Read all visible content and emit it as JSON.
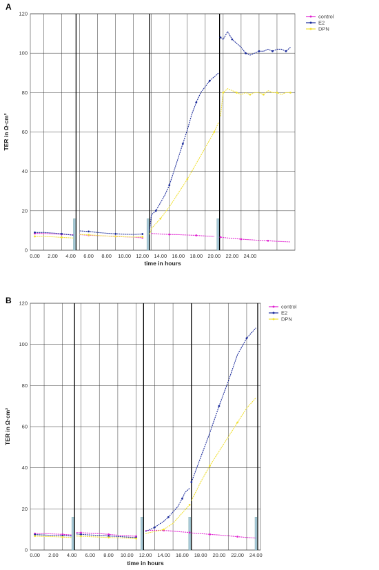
{
  "chart_data": [
    {
      "panel_label": "A",
      "type": "line",
      "xlabel": "time in hours",
      "ylabel": "TER in Ω·cm²",
      "x_tick_labels": [
        "0.00",
        "2.00",
        "4.00",
        "6.00",
        "8.00",
        "10.00",
        "12.00",
        "14.00",
        "16.00",
        "18.00",
        "20.00",
        "22.00",
        "24.00"
      ],
      "y_tick_labels": [
        "0",
        "20",
        "40",
        "60",
        "80",
        "100",
        "120"
      ],
      "ylim": [
        0,
        120
      ],
      "xlim": [
        -0.5,
        29
      ],
      "grid": true,
      "legend_position": "top-right",
      "series": [
        {
          "name": "control",
          "color": "#e020d0",
          "x": [
            0,
            1,
            2,
            3,
            4.3,
            5,
            6,
            7,
            8,
            9,
            10,
            11,
            12,
            13,
            14,
            15,
            16,
            17,
            18,
            19,
            20,
            20.7,
            21.5,
            22,
            23,
            24,
            25,
            26,
            27,
            28.5
          ],
          "y": [
            8.5,
            8.5,
            8.3,
            8.1,
            7.8,
            7.9,
            7.6,
            7.4,
            7.2,
            7.0,
            6.8,
            6.6,
            6.3,
            8.5,
            8.2,
            8.0,
            7.9,
            7.7,
            7.5,
            7.2,
            7.0,
            6.6,
            6.2,
            6.0,
            5.6,
            5.3,
            5.0,
            4.8,
            4.5,
            4.2
          ]
        },
        {
          "name": "E2",
          "color": "#1a2a9a",
          "x": [
            0,
            1,
            2,
            3,
            4.3,
            5,
            6,
            7,
            8,
            9,
            10,
            11,
            12,
            12.8,
            13,
            13.5,
            14,
            14.5,
            15,
            15.5,
            16,
            16.5,
            17,
            17.5,
            18,
            18.5,
            19,
            19.5,
            20,
            20.5,
            20.7,
            21,
            21.5,
            22,
            22.5,
            23,
            23.5,
            24,
            24.5,
            25,
            25.5,
            26,
            26.5,
            27,
            27.5,
            28,
            28.5
          ],
          "y": [
            9,
            9,
            8.7,
            8.3,
            7.6,
            9.8,
            9.5,
            9.0,
            8.6,
            8.3,
            8.1,
            8.0,
            8.2,
            10.0,
            18,
            20,
            24,
            28,
            33,
            40,
            47,
            54,
            61,
            69,
            75,
            80,
            83,
            86,
            88,
            90,
            108,
            107,
            111,
            107,
            105,
            103,
            100,
            99,
            100,
            101,
            101,
            102,
            101,
            102,
            102,
            101,
            103
          ]
        },
        {
          "name": "DPN",
          "color": "#f0e030",
          "x": [
            0,
            1,
            2,
            3,
            4.3,
            5,
            6,
            7,
            8,
            9,
            10,
            11,
            12,
            12.8,
            13,
            14,
            15,
            16,
            17,
            18,
            19,
            20,
            20.5,
            20.7,
            21,
            21.5,
            22,
            22.5,
            23,
            23.5,
            24,
            24.5,
            25,
            25.5,
            26,
            26.5,
            27,
            27.5,
            28,
            28.5
          ],
          "y": [
            7,
            7,
            6.8,
            6.5,
            6.2,
            8.0,
            7.8,
            7.5,
            7.2,
            7.0,
            6.8,
            6.7,
            6.8,
            8.0,
            11,
            16,
            22,
            29,
            36,
            44,
            52,
            60,
            65,
            68,
            80,
            82,
            81,
            80,
            79,
            80,
            79,
            80,
            80,
            79,
            81,
            80,
            80,
            79,
            80,
            80
          ]
        }
      ]
    },
    {
      "panel_label": "B",
      "type": "line",
      "xlabel": "time in hours",
      "ylabel": "TER in Ω·cm²",
      "x_tick_labels": [
        "0.00",
        "2.00",
        "4.00",
        "6.00",
        "8.00",
        "10.00",
        "12.00",
        "14.00",
        "16.00",
        "18.00",
        "20.00",
        "22.00",
        "24.00"
      ],
      "y_tick_labels": [
        "0",
        "20",
        "40",
        "60",
        "80",
        "100",
        "120"
      ],
      "ylim": [
        0,
        120
      ],
      "xlim": [
        -0.5,
        24.5
      ],
      "grid": true,
      "legend_position": "top-right",
      "series": [
        {
          "name": "control",
          "color": "#e020d0",
          "x": [
            0,
            1,
            2,
            3,
            4,
            4.5,
            5,
            6,
            7,
            8,
            9,
            10,
            11,
            12,
            13,
            14,
            15,
            16,
            16.8,
            17,
            18,
            19,
            20,
            21,
            22,
            23,
            24
          ],
          "y": [
            8,
            8,
            7.8,
            7.6,
            7.3,
            8.5,
            8.4,
            8.2,
            8.0,
            7.6,
            7.2,
            6.9,
            6.7,
            9.5,
            9.6,
            9.5,
            9.2,
            8.8,
            8.5,
            8.3,
            8.0,
            7.6,
            7.3,
            6.9,
            6.5,
            6.1,
            5.8
          ]
        },
        {
          "name": "E2",
          "color": "#1a2a9a",
          "x": [
            0,
            1,
            2,
            3,
            4,
            4.5,
            5,
            6,
            7,
            8,
            9,
            10,
            11,
            12,
            12.5,
            13,
            13.5,
            14,
            14.5,
            15,
            15.5,
            16,
            16.3,
            16.8,
            17,
            18,
            19,
            20,
            21,
            22,
            23,
            24
          ],
          "y": [
            7.5,
            7.3,
            7.1,
            7.0,
            6.8,
            7.8,
            7.6,
            7.3,
            7.1,
            6.8,
            6.6,
            6.3,
            6.1,
            9.0,
            10,
            11,
            12.5,
            14,
            16,
            18.5,
            21,
            25,
            28,
            30,
            33,
            45,
            57,
            70,
            82,
            95,
            103,
            108
          ]
        },
        {
          "name": "DPN",
          "color": "#f0e030",
          "x": [
            0,
            1,
            2,
            3,
            4,
            4.5,
            5,
            6,
            7,
            8,
            9,
            10,
            11,
            12,
            13,
            14,
            15,
            16,
            16.8,
            17,
            18,
            19,
            20,
            21,
            22,
            23,
            24
          ],
          "y": [
            6.8,
            6.6,
            6.5,
            6.3,
            6.1,
            6.8,
            6.7,
            6.5,
            6.3,
            6.1,
            5.9,
            5.8,
            5.6,
            8.0,
            9.0,
            10,
            13,
            18,
            22,
            24,
            33,
            41,
            48,
            55,
            62,
            69,
            74
          ]
        }
      ]
    }
  ]
}
